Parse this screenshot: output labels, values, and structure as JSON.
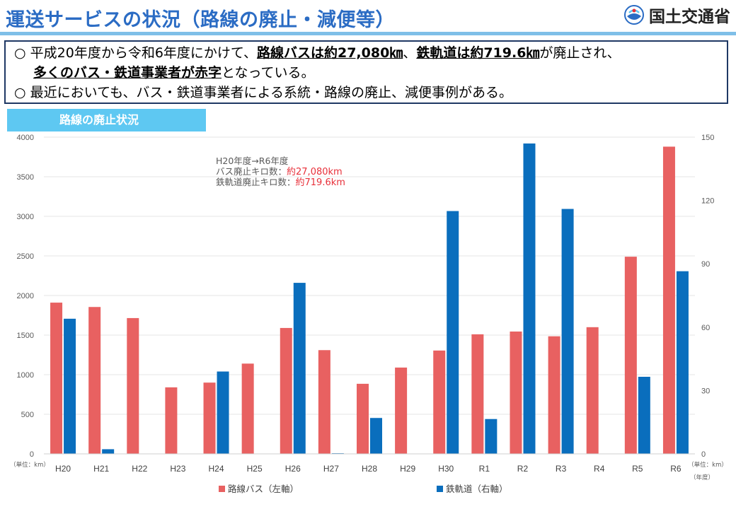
{
  "header": {
    "title": "運送サービスの状況（路線の廃止・減便等）",
    "ministry": "国土交通省"
  },
  "summary": {
    "bullet": "○",
    "line1_pre": "平成20年度から令和6年度にかけて、",
    "line1_bus": "路線バスは約27,080㎞",
    "line1_sep": "、",
    "line1_rail": "鉄軌道は約719.6㎞",
    "line1_post": "が廃止され、",
    "line2_bold": "多くのバス・鉄道事業者が赤字",
    "line2_post": "となっている。",
    "line3": "最近においても、バス・鉄道事業者による系統・路線の廃止、減便事例がある。"
  },
  "chart_tab": "路線の廃止状況",
  "colors": {
    "bus": "#e86161",
    "rail": "#0a6ebd",
    "accent": "#2b6cc4"
  },
  "chart_data": {
    "type": "bar",
    "categories": [
      "H20",
      "H21",
      "H22",
      "H23",
      "H24",
      "H25",
      "H26",
      "H27",
      "H28",
      "H29",
      "H30",
      "R1",
      "R2",
      "R3",
      "R4",
      "R5",
      "R6"
    ],
    "series": [
      {
        "name": "路線バス（左軸）",
        "axis": "left",
        "values": [
          1910,
          1855,
          1715,
          840,
          900,
          1140,
          1590,
          1310,
          885,
          1090,
          1305,
          1510,
          1545,
          1485,
          1600,
          2490,
          3880
        ]
      },
      {
        "name": "鉄軌道（右軸）",
        "axis": "right",
        "values": [
          64,
          2.2,
          null,
          null,
          39,
          null,
          81,
          0.3,
          17,
          null,
          115,
          16.5,
          147,
          116,
          null,
          36.5,
          86.5
        ]
      }
    ],
    "y_left": {
      "min": 0,
      "max": 4000,
      "ticks": [
        0,
        500,
        1000,
        1500,
        2000,
        2500,
        3000,
        3500,
        4000
      ]
    },
    "y_right": {
      "min": 0,
      "max": 150,
      "ticks": [
        0,
        30,
        60,
        90,
        120,
        150
      ]
    },
    "unit_left": "（単位：km）",
    "unit_right": "（単位：km）",
    "unit_x": "（年度）",
    "annotation": {
      "line1": "H20年度→R6年度",
      "line2_label": "バス廃止キロ数：",
      "line2_value": "約27,080km",
      "line3_label": "鉄軌道廃止キロ数：",
      "line3_value": "約719.6km"
    }
  }
}
